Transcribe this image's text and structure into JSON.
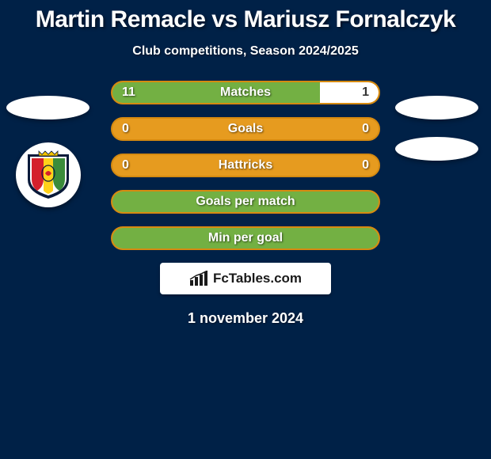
{
  "title": "Martin Remacle vs Mariusz Fornalczyk",
  "subtitle": "Club competitions, Season 2024/2025",
  "date": "1 november 2024",
  "logo_text": "FcTables.com",
  "colors": {
    "background": "#002147",
    "bar_bg": "#e69b1f",
    "bar_border": "#d68a10",
    "bar_left_fill": "#73b043",
    "bar_right_fill": "#ffffff",
    "text": "#ffffff",
    "right_value_on_white": "#333333"
  },
  "stats": [
    {
      "label": "Matches",
      "left_value": "11",
      "right_value": "1",
      "left_pct": 78,
      "right_pct": 22,
      "show_values": true
    },
    {
      "label": "Goals",
      "left_value": "0",
      "right_value": "0",
      "left_pct": 0,
      "right_pct": 0,
      "show_values": true
    },
    {
      "label": "Hattricks",
      "left_value": "0",
      "right_value": "0",
      "left_pct": 0,
      "right_pct": 0,
      "show_values": true
    },
    {
      "label": "Goals per match",
      "left_value": "",
      "right_value": "",
      "left_pct": 100,
      "right_pct": 0,
      "show_values": false
    },
    {
      "label": "Min per goal",
      "left_value": "",
      "right_value": "",
      "left_pct": 100,
      "right_pct": 0,
      "show_values": false
    }
  ],
  "club_badge": {
    "name": "korona-kielce",
    "colors": {
      "red": "#d4202b",
      "yellow": "#ffd11a",
      "green": "#3b8c3b",
      "crown": "#f2c200",
      "outline": "#0a1a3a"
    }
  }
}
